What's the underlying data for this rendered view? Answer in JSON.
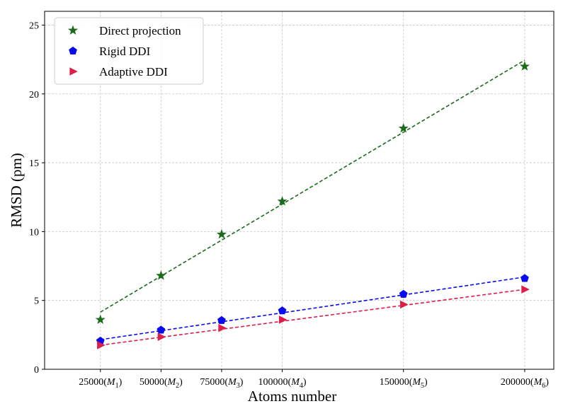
{
  "chart_data": {
    "type": "scatter",
    "xlabel": "Atoms number",
    "ylabel": "RMSD (pm)",
    "x": [
      25000,
      50000,
      75000,
      100000,
      150000,
      200000
    ],
    "x_tick_labels": [
      {
        "num": "25000",
        "sym": "M",
        "sub": "1"
      },
      {
        "num": "50000",
        "sym": "M",
        "sub": "2"
      },
      {
        "num": "75000",
        "sym": "M",
        "sub": "3"
      },
      {
        "num": "100000",
        "sym": "M",
        "sub": "4"
      },
      {
        "num": "150000",
        "sym": "M",
        "sub": "5"
      },
      {
        "num": "200000",
        "sym": "M",
        "sub": "6"
      }
    ],
    "xlim": [
      2000,
      212000
    ],
    "ylim": [
      0,
      26
    ],
    "yticks": [
      0,
      5,
      10,
      15,
      20,
      25
    ],
    "grid": true,
    "legend_position": "top-left",
    "series": [
      {
        "name": "Direct projection",
        "marker": "star",
        "color": "#1a6b1a",
        "values": [
          3.6,
          6.8,
          9.8,
          12.2,
          17.5,
          22.0
        ],
        "fit": {
          "x": [
            25000,
            200000
          ],
          "y": [
            4.15,
            22.45
          ]
        }
      },
      {
        "name": "Rigid DDI",
        "marker": "pentagon",
        "color": "#0a0af0",
        "values": [
          2.05,
          2.85,
          3.55,
          4.25,
          5.45,
          6.6
        ],
        "fit": {
          "x": [
            25000,
            200000
          ],
          "y": [
            2.15,
            6.7
          ]
        }
      },
      {
        "name": "Adaptive DDI",
        "marker": "triangle-right",
        "color": "#dc1e4a",
        "values": [
          1.75,
          2.35,
          3.0,
          3.6,
          4.7,
          5.8
        ],
        "fit": {
          "x": [
            25000,
            200000
          ],
          "y": [
            1.75,
            5.8
          ]
        }
      }
    ]
  }
}
